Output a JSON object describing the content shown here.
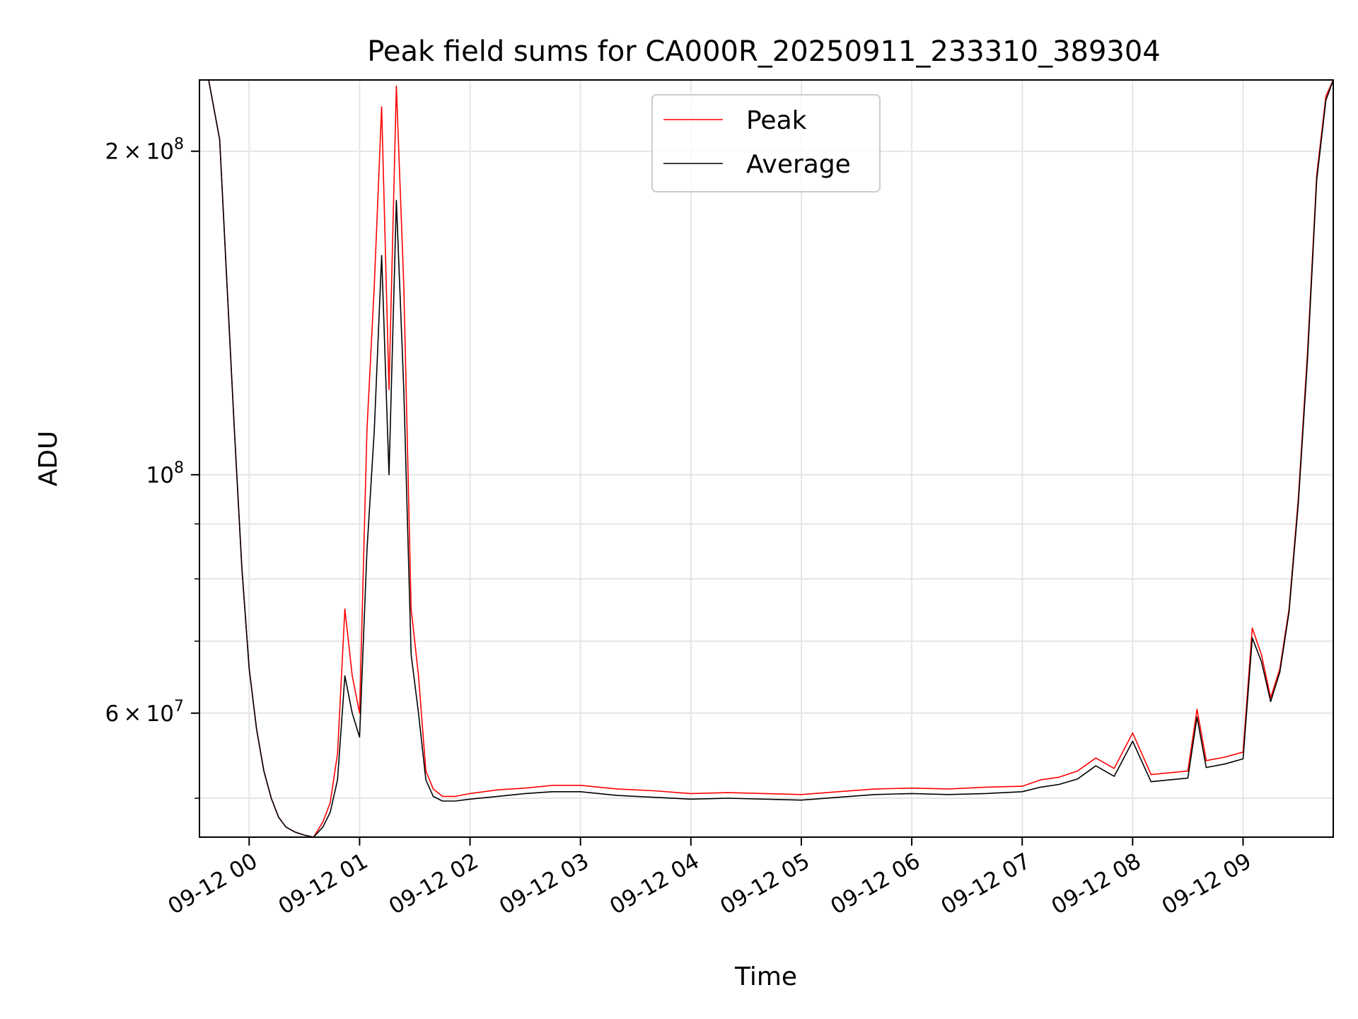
{
  "chart_data": {
    "type": "line",
    "title": "Peak field sums for CA000R_20250911_233310_389304",
    "xlabel": "Time",
    "ylabel": "ADU",
    "y_scale": "log",
    "xlim": [
      "09-11 23:33",
      "09-12 09:49"
    ],
    "ylim": [
      46000000,
      233000000
    ],
    "grid": true,
    "legend_position": "top-center",
    "x_ticks": [
      {
        "at": "09-12 00:00",
        "label": "09-12 00"
      },
      {
        "at": "09-12 01:00",
        "label": "09-12 01"
      },
      {
        "at": "09-12 02:00",
        "label": "09-12 02"
      },
      {
        "at": "09-12 03:00",
        "label": "09-12 03"
      },
      {
        "at": "09-12 04:00",
        "label": "09-12 04"
      },
      {
        "at": "09-12 05:00",
        "label": "09-12 05"
      },
      {
        "at": "09-12 06:00",
        "label": "09-12 06"
      },
      {
        "at": "09-12 07:00",
        "label": "09-12 07"
      },
      {
        "at": "09-12 08:00",
        "label": "09-12 08"
      },
      {
        "at": "09-12 09:00",
        "label": "09-12 09"
      }
    ],
    "y_ticks": [
      {
        "value": 200000000,
        "mantissa": "2",
        "exponent": "8"
      },
      {
        "value": 100000000,
        "mantissa": "",
        "exponent": "8"
      },
      {
        "value": 60000000,
        "mantissa": "6",
        "exponent": "7"
      }
    ],
    "y_minor_ticks": [
      50000000,
      70000000,
      80000000,
      90000000
    ],
    "x": [
      "09-11 23:33",
      "09-11 23:38",
      "09-11 23:44",
      "09-11 23:48",
      "09-11 23:52",
      "09-11 23:56",
      "09-12 00:00",
      "09-12 00:04",
      "09-12 00:08",
      "09-12 00:12",
      "09-12 00:16",
      "09-12 00:20",
      "09-12 00:25",
      "09-12 00:30",
      "09-12 00:35",
      "09-12 00:40",
      "09-12 00:44",
      "09-12 00:48",
      "09-12 00:52",
      "09-12 00:56",
      "09-12 01:00",
      "09-12 01:04",
      "09-12 01:08",
      "09-12 01:12",
      "09-12 01:16",
      "09-12 01:20",
      "09-12 01:24",
      "09-12 01:28",
      "09-12 01:32",
      "09-12 01:36",
      "09-12 01:40",
      "09-12 01:45",
      "09-12 01:52",
      "09-12 02:00",
      "09-12 02:15",
      "09-12 02:30",
      "09-12 02:45",
      "09-12 03:00",
      "09-12 03:20",
      "09-12 03:40",
      "09-12 04:00",
      "09-12 04:20",
      "09-12 04:40",
      "09-12 05:00",
      "09-12 05:20",
      "09-12 05:40",
      "09-12 06:00",
      "09-12 06:20",
      "09-12 06:40",
      "09-12 07:00",
      "09-12 07:10",
      "09-12 07:20",
      "09-12 07:30",
      "09-12 07:40",
      "09-12 07:50",
      "09-12 08:00",
      "09-12 08:10",
      "09-12 08:20",
      "09-12 08:30",
      "09-12 08:35",
      "09-12 08:40",
      "09-12 08:50",
      "09-12 09:00",
      "09-12 09:05",
      "09-12 09:10",
      "09-12 09:15",
      "09-12 09:20",
      "09-12 09:25",
      "09-12 09:30",
      "09-12 09:35",
      "09-12 09:40",
      "09-12 09:45",
      "09-12 09:49"
    ],
    "series": [
      {
        "name": "Peak",
        "color": "#ff0000",
        "values": [
          233000000,
          233000000,
          205000000,
          150000000,
          110000000,
          82000000,
          66000000,
          58000000,
          53000000,
          50000000,
          48000000,
          47000000,
          46500000,
          46200000,
          46000000,
          47500000,
          49500000,
          55000000,
          75000000,
          65000000,
          60000000,
          110000000,
          150000000,
          220000000,
          120000000,
          230000000,
          150000000,
          75000000,
          65000000,
          53000000,
          51000000,
          50200000,
          50200000,
          50500000,
          50900000,
          51100000,
          51400000,
          51400000,
          51000000,
          50800000,
          50500000,
          50600000,
          50500000,
          50400000,
          50700000,
          51000000,
          51100000,
          51000000,
          51200000,
          51300000,
          52000000,
          52300000,
          53000000,
          54500000,
          53300000,
          57500000,
          52600000,
          52800000,
          53000000,
          60500000,
          54200000,
          54600000,
          55200000,
          72000000,
          68000000,
          62000000,
          66000000,
          75000000,
          95000000,
          130000000,
          190000000,
          225000000,
          233000000
        ]
      },
      {
        "name": "Average",
        "color": "#000000",
        "values": [
          233000000,
          233000000,
          205000000,
          150000000,
          110000000,
          82000000,
          66000000,
          58000000,
          53000000,
          50000000,
          48000000,
          47000000,
          46500000,
          46200000,
          46000000,
          47000000,
          48500000,
          52000000,
          65000000,
          60000000,
          57000000,
          85000000,
          110000000,
          160000000,
          100000000,
          180000000,
          120000000,
          68000000,
          60000000,
          52000000,
          50200000,
          49700000,
          49700000,
          49900000,
          50200000,
          50500000,
          50700000,
          50700000,
          50300000,
          50100000,
          49900000,
          50000000,
          49900000,
          49800000,
          50100000,
          50400000,
          50500000,
          50400000,
          50500000,
          50700000,
          51200000,
          51500000,
          52100000,
          53600000,
          52400000,
          56500000,
          51800000,
          52000000,
          52200000,
          59500000,
          53400000,
          53800000,
          54400000,
          70500000,
          67000000,
          61500000,
          65500000,
          74500000,
          94000000,
          128000000,
          188000000,
          223000000,
          233000000
        ]
      }
    ]
  }
}
